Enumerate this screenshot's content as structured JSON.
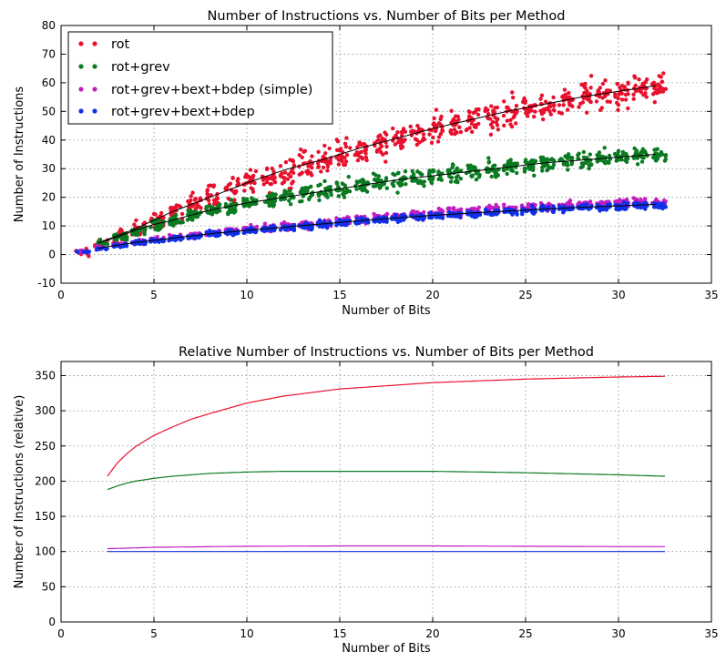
{
  "chart_data": [
    {
      "type": "scatter",
      "title": "Number of Instructions vs. Number of Bits per Method",
      "xlabel": "Number of Bits",
      "ylabel": "Number of Instructions",
      "xlim": [
        0,
        35
      ],
      "ylim": [
        -10,
        80
      ],
      "xticks": [
        0,
        5,
        10,
        15,
        20,
        25,
        30,
        35
      ],
      "yticks": [
        -10,
        0,
        10,
        20,
        30,
        40,
        50,
        60,
        70,
        80
      ],
      "grid": true,
      "legend_position": "top-left",
      "series": [
        {
          "name": "rot",
          "color": "#e8112d",
          "x_range": [
            1,
            32
          ],
          "trend": [
            [
              1,
              1
            ],
            [
              2,
              4
            ],
            [
              3,
              6.5
            ],
            [
              4,
              9
            ],
            [
              5,
              12
            ],
            [
              6,
              15
            ],
            [
              8,
              20
            ],
            [
              10,
              25
            ],
            [
              12,
              29.5
            ],
            [
              14,
              33
            ],
            [
              16,
              37
            ],
            [
              18,
              40.5
            ],
            [
              20,
              44
            ],
            [
              22,
              47
            ],
            [
              24,
              50
            ],
            [
              26,
              52.5
            ],
            [
              28,
              55
            ],
            [
              30,
              57
            ],
            [
              32,
              59
            ]
          ],
          "spread": 5.5
        },
        {
          "name": "rot+grev",
          "color": "#0b7a22",
          "x_range": [
            2,
            32
          ],
          "trend": [
            [
              2,
              4
            ],
            [
              3,
              6
            ],
            [
              4,
              8.5
            ],
            [
              5,
              10.5
            ],
            [
              6,
              12
            ],
            [
              8,
              15.5
            ],
            [
              10,
              18
            ],
            [
              12,
              20
            ],
            [
              14,
              22
            ],
            [
              16,
              24
            ],
            [
              18,
              26
            ],
            [
              20,
              27.5
            ],
            [
              22,
              29
            ],
            [
              24,
              30.5
            ],
            [
              26,
              32
            ],
            [
              28,
              33
            ],
            [
              30,
              34
            ],
            [
              32,
              35
            ]
          ],
          "spread": 3
        },
        {
          "name": "rot+grev+bext+bdep (simple)",
          "color": "#c21ec2",
          "x_range": [
            1,
            32
          ],
          "trend": [
            [
              1,
              1
            ],
            [
              2,
              2.5
            ],
            [
              3,
              3.5
            ],
            [
              4,
              4.5
            ],
            [
              6,
              6
            ],
            [
              8,
              7.5
            ],
            [
              10,
              8.8
            ],
            [
              12,
              10
            ],
            [
              14,
              11.2
            ],
            [
              16,
              12.4
            ],
            [
              18,
              13.5
            ],
            [
              20,
              14.5
            ],
            [
              22,
              15.3
            ],
            [
              24,
              16
            ],
            [
              26,
              16.7
            ],
            [
              28,
              17.3
            ],
            [
              30,
              17.8
            ],
            [
              32,
              18.3
            ]
          ],
          "spread": 1.4
        },
        {
          "name": "rot+grev+bext+bdep",
          "color": "#1030e8",
          "x_range": [
            1,
            32
          ],
          "trend": [
            [
              1,
              1
            ],
            [
              2,
              2.2
            ],
            [
              3,
              3.2
            ],
            [
              4,
              4.2
            ],
            [
              6,
              5.7
            ],
            [
              8,
              7.2
            ],
            [
              10,
              8.4
            ],
            [
              12,
              9.5
            ],
            [
              14,
              10.6
            ],
            [
              16,
              11.7
            ],
            [
              18,
              12.7
            ],
            [
              20,
              13.6
            ],
            [
              22,
              14.4
            ],
            [
              24,
              15.1
            ],
            [
              26,
              15.8
            ],
            [
              28,
              16.4
            ],
            [
              30,
              16.9
            ],
            [
              32,
              17.4
            ]
          ],
          "spread": 1.2
        }
      ],
      "trend_lines": [
        {
          "series": "rot",
          "x": [
            2,
            32
          ],
          "y_at_start": 4,
          "y_at_end": 59
        },
        {
          "series": "rot+grev",
          "x": [
            2,
            32
          ],
          "y_at_start": 4,
          "y_at_end": 35
        },
        {
          "series": "rot+grev+bext+bdep",
          "x": [
            2,
            32
          ],
          "y_at_start": 2,
          "y_at_end": 17.5
        }
      ]
    },
    {
      "type": "line",
      "title": "Relative Number of Instructions vs. Number of Bits per Method",
      "xlabel": "Number of Bits",
      "ylabel": "Number of Instructions (relative)",
      "xlim": [
        0,
        35
      ],
      "ylim": [
        0,
        370
      ],
      "xticks": [
        0,
        5,
        10,
        15,
        20,
        25,
        30,
        35
      ],
      "yticks": [
        0,
        50,
        100,
        150,
        200,
        250,
        300,
        350
      ],
      "grid": true,
      "series": [
        {
          "name": "rot",
          "color": "#e8112d",
          "x": [
            2.5,
            3,
            3.5,
            4,
            5,
            6,
            7,
            8,
            10,
            12,
            15,
            20,
            25,
            30,
            32.5
          ],
          "values": [
            207,
            225,
            238,
            249,
            265,
            277,
            288,
            296,
            311,
            321,
            331,
            340,
            345,
            348,
            349
          ]
        },
        {
          "name": "rot+grev",
          "color": "#0b7a22",
          "x": [
            2.5,
            3,
            3.5,
            4,
            5,
            6,
            8,
            10,
            12,
            15,
            20,
            25,
            30,
            32.5
          ],
          "values": [
            188,
            193,
            197,
            200,
            204,
            207,
            211,
            213,
            214,
            214,
            214,
            212,
            209,
            207
          ]
        },
        {
          "name": "rot+grev+bext+bdep (simple)",
          "color": "#c21ec2",
          "x": [
            2.5,
            5,
            10,
            15,
            20,
            25,
            30,
            32.5
          ],
          "values": [
            104,
            106,
            107.5,
            108,
            108,
            107.5,
            107,
            107
          ]
        },
        {
          "name": "rot+grev+bext+bdep",
          "color": "#1030e8",
          "x": [
            2.5,
            32.5
          ],
          "values": [
            100,
            100
          ]
        }
      ]
    }
  ]
}
